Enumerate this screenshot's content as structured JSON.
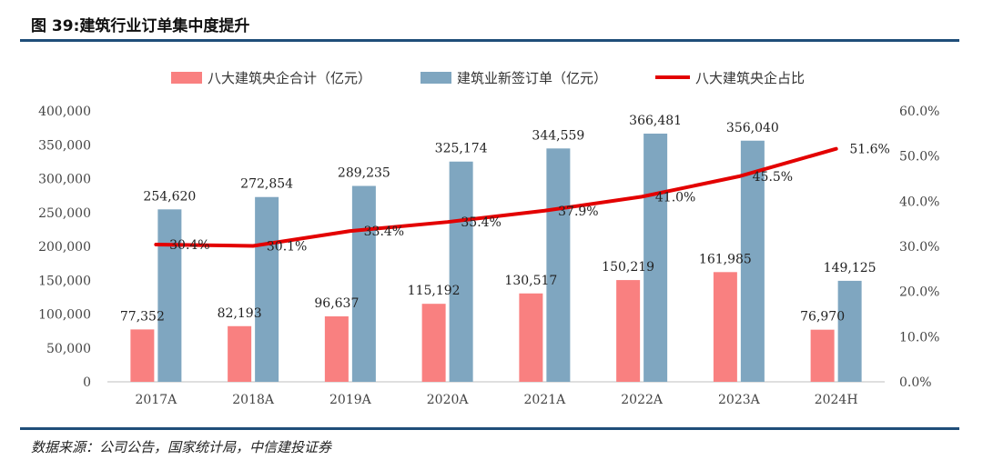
{
  "header": {
    "title": "图 39:建筑行业订单集中度提升"
  },
  "footer": {
    "source": "数据来源：公司公告，国家统计局，中信建投证券"
  },
  "colors": {
    "central_soe": "#f98080",
    "orders": "#7fa6c0",
    "share_line": "#e30000",
    "rule": "#1f4e79"
  },
  "chart_data": {
    "type": "bar",
    "categories": [
      "2017A",
      "2018A",
      "2019A",
      "2020A",
      "2021A",
      "2022A",
      "2023A",
      "2024H"
    ],
    "series": [
      {
        "name": "八大建筑央企合计（亿元）",
        "type": "bar",
        "axis": "left",
        "values": [
          77352,
          82193,
          96637,
          115192,
          130517,
          150219,
          161985,
          76970
        ],
        "labels": [
          "77,352",
          "82,193",
          "96,637",
          "115,192",
          "130,517",
          "150,219",
          "161,985",
          "76,970"
        ]
      },
      {
        "name": "建筑业新签订单（亿元）",
        "type": "bar",
        "axis": "left",
        "values": [
          254620,
          272854,
          289235,
          325174,
          344559,
          366481,
          356040,
          149125
        ],
        "labels": [
          "254,620",
          "272,854",
          "289,235",
          "325,174",
          "344,559",
          "366,481",
          "356,040",
          "149,125"
        ]
      },
      {
        "name": "八大建筑央企占比",
        "type": "line",
        "axis": "right",
        "values": [
          30.4,
          30.1,
          33.4,
          35.4,
          37.9,
          41.0,
          45.5,
          51.6
        ],
        "labels": [
          "30.4%",
          "30.1%",
          "33.4%",
          "35.4%",
          "37.9%",
          "41.0%",
          "45.5%",
          "51.6%"
        ]
      }
    ],
    "y_left": {
      "range": [
        0,
        400000
      ],
      "ticks": [
        "0",
        "50,000",
        "100,000",
        "150,000",
        "200,000",
        "250,000",
        "300,000",
        "350,000",
        "400,000"
      ]
    },
    "y_right": {
      "range": [
        0,
        60
      ],
      "ticks": [
        "0.0%",
        "10.0%",
        "20.0%",
        "30.0%",
        "40.0%",
        "50.0%",
        "60.0%"
      ]
    },
    "legend_position": "top",
    "grid": false
  }
}
